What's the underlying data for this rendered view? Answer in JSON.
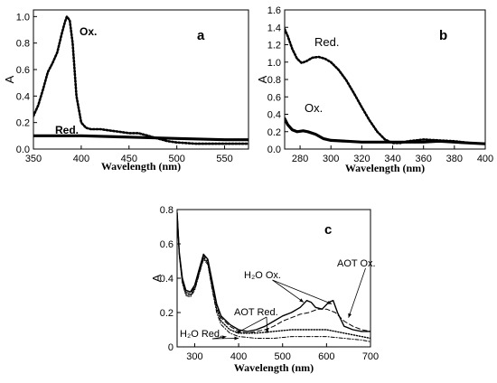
{
  "chart_data": [
    {
      "id": "a",
      "type": "line",
      "panel_label": "a",
      "xlabel": "Wavelength (nm)",
      "ylabel": "A",
      "xlim": [
        350,
        575
      ],
      "ylim": [
        0,
        1.05
      ],
      "xticks": [
        350,
        400,
        450,
        500,
        550
      ],
      "yticks": [
        0.0,
        0.2,
        0.4,
        0.6,
        0.8,
        1.0
      ],
      "ytick_labels": [
        "0.0",
        "0.2",
        "0.4",
        "0.6",
        "0.8",
        "1.0"
      ],
      "grid": false,
      "series": [
        {
          "name": "Ox.",
          "style": "dotted",
          "x": [
            350,
            355,
            360,
            365,
            370,
            375,
            380,
            383,
            385,
            388,
            391,
            395,
            400,
            405,
            410,
            420,
            430,
            440,
            450,
            460,
            470,
            480,
            490,
            500,
            520,
            540,
            560,
            575
          ],
          "y": [
            0.25,
            0.33,
            0.45,
            0.58,
            0.65,
            0.73,
            0.88,
            0.96,
            1.0,
            0.97,
            0.8,
            0.4,
            0.2,
            0.16,
            0.15,
            0.15,
            0.14,
            0.13,
            0.12,
            0.12,
            0.1,
            0.08,
            0.06,
            0.05,
            0.04,
            0.04,
            0.04,
            0.04
          ]
        },
        {
          "name": "Red.",
          "style": "solid",
          "x": [
            350,
            400,
            450,
            500,
            550,
            575
          ],
          "y": [
            0.1,
            0.1,
            0.09,
            0.08,
            0.07,
            0.07
          ]
        }
      ],
      "annotations": [
        {
          "text": "Ox.",
          "at": [
            398,
            0.93
          ]
        },
        {
          "text": "Red.",
          "at": [
            361,
            0.15
          ]
        }
      ]
    },
    {
      "id": "b",
      "type": "line",
      "panel_label": "b",
      "xlabel": "Wavelength (nm)",
      "ylabel": "A",
      "xlim": [
        270,
        400
      ],
      "ylim": [
        0,
        1.6
      ],
      "xticks": [
        280,
        300,
        320,
        340,
        360,
        380,
        400
      ],
      "yticks": [
        0.0,
        0.2,
        0.4,
        0.6,
        0.8,
        1.0,
        1.2,
        1.4,
        1.6
      ],
      "ytick_labels": [
        "0.0",
        "0.2",
        "0.4",
        "0.6",
        "0.8",
        "1.0",
        "1.2",
        "1.4",
        "1.6"
      ],
      "grid": false,
      "series": [
        {
          "name": "Red.",
          "style": "dotted",
          "x": [
            270,
            272,
            275,
            278,
            281,
            284,
            288,
            292,
            296,
            300,
            305,
            310,
            315,
            320,
            325,
            330,
            335,
            340,
            345,
            350,
            355,
            360,
            370,
            380,
            390,
            400
          ],
          "y": [
            1.38,
            1.3,
            1.15,
            1.04,
            0.99,
            1.01,
            1.05,
            1.06,
            1.04,
            1.0,
            0.91,
            0.79,
            0.64,
            0.48,
            0.33,
            0.2,
            0.11,
            0.07,
            0.07,
            0.09,
            0.1,
            0.11,
            0.1,
            0.09,
            0.07,
            0.06
          ]
        },
        {
          "name": "Ox.",
          "style": "solid",
          "x": [
            270,
            272,
            275,
            278,
            282,
            285,
            290,
            295,
            300,
            310,
            320,
            340,
            360,
            370,
            380,
            390,
            400
          ],
          "y": [
            0.35,
            0.28,
            0.22,
            0.2,
            0.21,
            0.2,
            0.17,
            0.12,
            0.1,
            0.09,
            0.08,
            0.08,
            0.08,
            0.09,
            0.08,
            0.07,
            0.06
          ]
        }
      ],
      "annotations": [
        {
          "text": "Red.",
          "at": [
            288,
            1.25
          ]
        },
        {
          "text": "Ox.",
          "at": [
            293,
            0.48
          ]
        }
      ]
    },
    {
      "id": "c",
      "type": "line",
      "panel_label": "c",
      "xlabel": "Wavelength (nm)",
      "ylabel": "A",
      "xlim": [
        260,
        700
      ],
      "ylim": [
        0,
        0.8
      ],
      "xticks": [
        300,
        400,
        500,
        600,
        700
      ],
      "yticks": [
        0.0,
        0.2,
        0.4,
        0.6,
        0.8
      ],
      "ytick_labels": [
        "0",
        "0.2",
        "0.4",
        "0.6",
        "0.8"
      ],
      "grid": false,
      "series": [
        {
          "name": "H₂O Ox.",
          "style": "solid",
          "x": [
            260,
            265,
            272,
            280,
            290,
            300,
            310,
            320,
            330,
            340,
            350,
            360,
            380,
            400,
            420,
            440,
            460,
            480,
            500,
            520,
            540,
            555,
            565,
            575,
            590,
            605,
            615,
            625,
            640,
            660,
            680,
            700
          ],
          "y": [
            0.78,
            0.55,
            0.4,
            0.33,
            0.32,
            0.36,
            0.45,
            0.54,
            0.51,
            0.38,
            0.25,
            0.18,
            0.13,
            0.1,
            0.09,
            0.1,
            0.12,
            0.15,
            0.18,
            0.2,
            0.23,
            0.27,
            0.26,
            0.23,
            0.22,
            0.26,
            0.27,
            0.2,
            0.12,
            0.1,
            0.09,
            0.09
          ]
        },
        {
          "name": "AOT Ox.",
          "style": "dashed",
          "x": [
            260,
            265,
            272,
            280,
            290,
            300,
            310,
            320,
            330,
            340,
            350,
            360,
            380,
            400,
            420,
            440,
            460,
            480,
            500,
            520,
            540,
            560,
            580,
            600,
            620,
            640,
            660,
            680,
            700
          ],
          "y": [
            0.78,
            0.55,
            0.4,
            0.32,
            0.31,
            0.35,
            0.44,
            0.53,
            0.5,
            0.37,
            0.24,
            0.17,
            0.12,
            0.09,
            0.08,
            0.09,
            0.1,
            0.12,
            0.15,
            0.17,
            0.19,
            0.2,
            0.22,
            0.22,
            0.2,
            0.15,
            0.12,
            0.1,
            0.09
          ]
        },
        {
          "name": "AOT Red.",
          "style": "dotted",
          "x": [
            260,
            265,
            272,
            280,
            290,
            300,
            310,
            320,
            330,
            340,
            350,
            360,
            380,
            400,
            440,
            480,
            520,
            560,
            600,
            640,
            680,
            700
          ],
          "y": [
            0.78,
            0.54,
            0.38,
            0.31,
            0.3,
            0.34,
            0.43,
            0.52,
            0.49,
            0.35,
            0.22,
            0.15,
            0.1,
            0.08,
            0.08,
            0.09,
            0.1,
            0.1,
            0.1,
            0.08,
            0.06,
            0.05
          ]
        },
        {
          "name": "H₂O Red.",
          "style": "dashdot",
          "x": [
            260,
            265,
            272,
            280,
            290,
            300,
            310,
            320,
            330,
            340,
            350,
            360,
            380,
            400,
            440,
            480,
            520,
            560,
            600,
            640,
            680,
            700
          ],
          "y": [
            0.77,
            0.53,
            0.37,
            0.3,
            0.29,
            0.33,
            0.42,
            0.51,
            0.48,
            0.33,
            0.2,
            0.13,
            0.08,
            0.06,
            0.05,
            0.05,
            0.06,
            0.06,
            0.06,
            0.05,
            0.04,
            0.03
          ]
        }
      ],
      "annotations": [
        {
          "text": "H₂O Ox.",
          "at": [
            470,
            0.43
          ],
          "arrow_to": [
            [
              548,
              0.26
            ],
            [
              612,
              0.25
            ]
          ]
        },
        {
          "text": "AOT Ox.",
          "at": [
            608,
            0.48
          ],
          "arrow_to": [
            [
              650,
              0.17
            ]
          ]
        },
        {
          "text": "AOT Red.",
          "at": [
            395,
            0.19
          ],
          "arrow_to": [
            [
              395,
              0.08
            ],
            [
              465,
              0.08
            ]
          ]
        },
        {
          "text": "H₂O Red.",
          "at": [
            278,
            0.06
          ],
          "arrow_to": [
            [
              372,
              0.06
            ],
            [
              400,
              0.05
            ]
          ]
        }
      ]
    }
  ]
}
